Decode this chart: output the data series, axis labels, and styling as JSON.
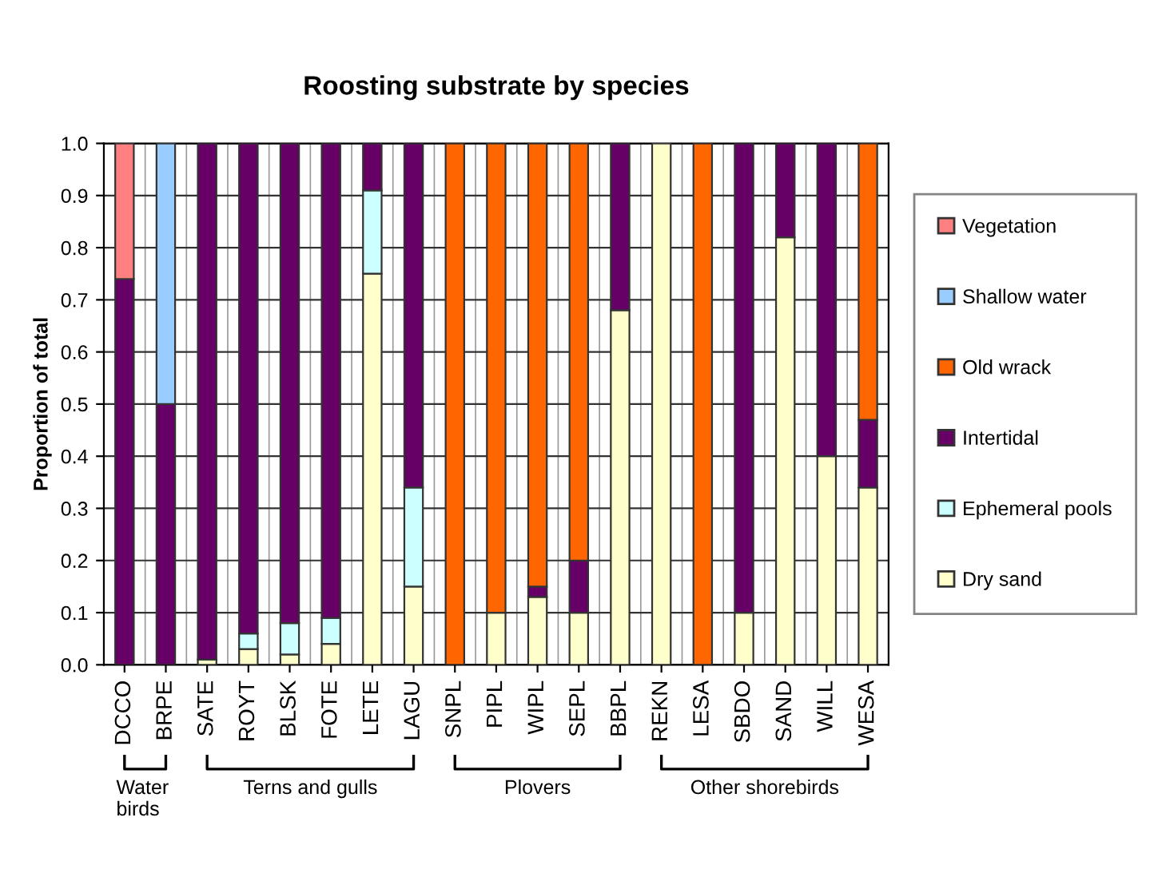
{
  "chart_data": {
    "type": "bar",
    "title": "Roosting substrate by species",
    "ylabel": "Proportion of total",
    "categories": [
      "DCCO",
      "BRPE",
      "SATE",
      "ROYT",
      "BLSK",
      "FOTE",
      "LETE",
      "LAGU",
      "SNPL",
      "PIPL",
      "WIPL",
      "SEPL",
      "BBPL",
      "REKN",
      "LESA",
      "SBDO",
      "SAND",
      "WILL",
      "WESA"
    ],
    "stacked": true,
    "series": [
      {
        "name": "Dry sand",
        "color": "#ffffcc",
        "values": [
          0,
          0,
          0.01,
          0.03,
          0.02,
          0.04,
          0.75,
          0.15,
          0,
          0.1,
          0.13,
          0.1,
          0.68,
          1.0,
          0,
          0.1,
          0.82,
          0.4,
          0.34
        ]
      },
      {
        "name": "Ephemeral pools",
        "color": "#ccffff",
        "values": [
          0,
          0,
          0,
          0.03,
          0.06,
          0.05,
          0.16,
          0.19,
          0,
          0,
          0,
          0,
          0,
          0,
          0,
          0,
          0,
          0,
          0
        ]
      },
      {
        "name": "Intertidal",
        "color": "#660066",
        "values": [
          0.74,
          0.5,
          0.99,
          0.94,
          0.92,
          0.91,
          0.09,
          0.66,
          0,
          0,
          0.02,
          0.1,
          0.32,
          0,
          0,
          0.9,
          0.18,
          0.6,
          0.13
        ]
      },
      {
        "name": "Old wrack",
        "color": "#ff6600",
        "values": [
          0,
          0,
          0,
          0,
          0,
          0,
          0,
          0,
          1.0,
          0.9,
          0.85,
          0.8,
          0,
          0,
          1.0,
          0,
          0,
          0,
          0.53
        ]
      },
      {
        "name": "Shallow water",
        "color": "#99ccff",
        "values": [
          0,
          0.5,
          0,
          0,
          0,
          0,
          0,
          0,
          0,
          0,
          0,
          0,
          0,
          0,
          0,
          0,
          0,
          0,
          0
        ]
      },
      {
        "name": "Vegetation",
        "color": "#ff8080",
        "values": [
          0.26,
          0,
          0,
          0,
          0,
          0,
          0,
          0,
          0,
          0,
          0,
          0,
          0,
          0,
          0,
          0,
          0,
          0,
          0
        ]
      }
    ],
    "ylim": [
      0,
      1.0
    ],
    "yticks": [
      {
        "value": 0,
        "label": "0.0"
      },
      {
        "value": 0.1,
        "label": "0.1"
      },
      {
        "value": 0.2,
        "label": "0.2"
      },
      {
        "value": 0.3,
        "label": "0.3"
      },
      {
        "value": 0.4,
        "label": "0.4"
      },
      {
        "value": 0.5,
        "label": "0.5"
      },
      {
        "value": 0.6,
        "label": "0.6"
      },
      {
        "value": 0.7,
        "label": "0.7"
      },
      {
        "value": 0.8,
        "label": "0.8"
      },
      {
        "value": 0.9,
        "label": "0.9"
      },
      {
        "value": 1.0,
        "label": "1.0"
      }
    ],
    "grid": true,
    "legend": "right",
    "annotations": [
      "Water\nbirds",
      "Terns and gulls",
      "Plovers",
      "Other shorebirds"
    ]
  }
}
